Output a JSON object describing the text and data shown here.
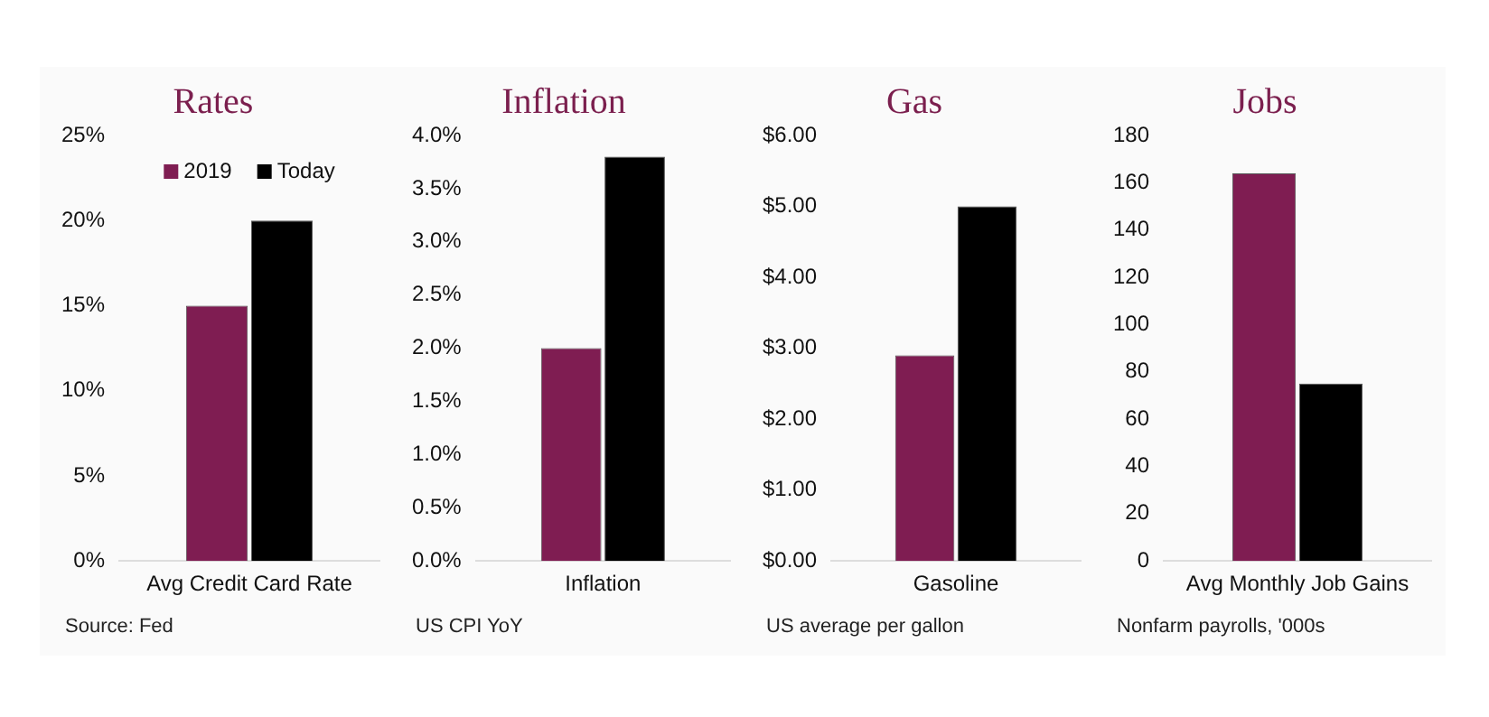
{
  "chart_data": [
    {
      "type": "bar",
      "title": "Rates",
      "categories": [
        "Avg Credit Card Rate"
      ],
      "series": [
        {
          "name": "2019",
          "color": "#7f1d52",
          "values": [
            15
          ]
        },
        {
          "name": "Today",
          "color": "#000000",
          "values": [
            20
          ]
        }
      ],
      "ylim": [
        0,
        25
      ],
      "yticks": [
        {
          "value": 0,
          "label": "0%"
        },
        {
          "value": 5,
          "label": "5%"
        },
        {
          "value": 10,
          "label": "10%"
        },
        {
          "value": 15,
          "label": "15%"
        },
        {
          "value": 20,
          "label": "20%"
        },
        {
          "value": 25,
          "label": "25%"
        }
      ],
      "grid": false,
      "legend": "top",
      "annotations": [
        "Source: Fed"
      ]
    },
    {
      "type": "bar",
      "title": "Inflation",
      "categories": [
        "Inflation"
      ],
      "series": [
        {
          "color": "#7f1d52",
          "values": [
            2.0
          ]
        },
        {
          "color": "#000000",
          "values": [
            3.8
          ]
        }
      ],
      "ylim": [
        0,
        4
      ],
      "yticks": [
        {
          "value": 0,
          "label": "0.0%"
        },
        {
          "value": 0.5,
          "label": "0.5%"
        },
        {
          "value": 1,
          "label": "1.0%"
        },
        {
          "value": 1.5,
          "label": "1.5%"
        },
        {
          "value": 2,
          "label": "2.0%"
        },
        {
          "value": 2.5,
          "label": "2.5%"
        },
        {
          "value": 3,
          "label": "3.0%"
        },
        {
          "value": 3.5,
          "label": "3.5%"
        },
        {
          "value": 4,
          "label": "4.0%"
        }
      ],
      "grid": false,
      "annotations": [
        "US CPI YoY"
      ]
    },
    {
      "type": "bar",
      "title": "Gas",
      "categories": [
        "Gasoline"
      ],
      "series": [
        {
          "color": "#7f1d52",
          "values": [
            2.9
          ]
        },
        {
          "color": "#000000",
          "values": [
            5.0
          ]
        }
      ],
      "ylim": [
        0,
        6
      ],
      "yticks": [
        {
          "value": 0,
          "label": "$0.00"
        },
        {
          "value": 1,
          "label": "$1.00"
        },
        {
          "value": 2,
          "label": "$2.00"
        },
        {
          "value": 3,
          "label": "$3.00"
        },
        {
          "value": 4,
          "label": "$4.00"
        },
        {
          "value": 5,
          "label": "$5.00"
        },
        {
          "value": 6,
          "label": "$6.00"
        }
      ],
      "grid": false,
      "annotations": [
        "US average per gallon"
      ]
    },
    {
      "type": "bar",
      "title": "Jobs",
      "categories": [
        "Avg Monthly Job Gains"
      ],
      "series": [
        {
          "color": "#7f1d52",
          "values": [
            164
          ]
        },
        {
          "color": "#000000",
          "values": [
            75
          ]
        }
      ],
      "ylim": [
        0,
        180
      ],
      "yticks": [
        0,
        20,
        40,
        60,
        80,
        100,
        120,
        140,
        160,
        180
      ],
      "grid": false,
      "annotations": [
        "Nonfarm payrolls, '000s"
      ]
    }
  ]
}
